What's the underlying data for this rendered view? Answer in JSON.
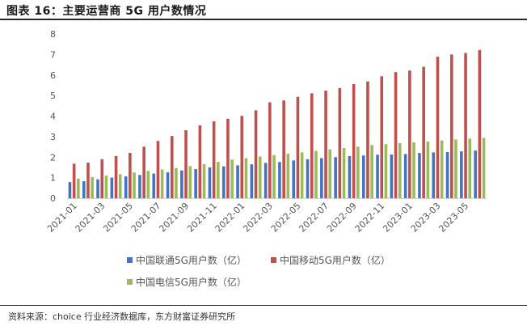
{
  "title": "图表 16：主要运营商 5G 用户数情况",
  "source": "资料来源：choice 行业经济数据库，东方财富证券研究所",
  "chart_data": {
    "type": "bar",
    "ylim": [
      0,
      8
    ],
    "yticks": [
      0,
      1,
      2,
      3,
      4,
      5,
      6,
      7,
      8
    ],
    "grid": false,
    "legend_position": "bottom",
    "categories": [
      "2021-01",
      "2021-02",
      "2021-03",
      "2021-04",
      "2021-05",
      "2021-06",
      "2021-07",
      "2021-08",
      "2021-09",
      "2021-10",
      "2021-11",
      "2021-12",
      "2022-01",
      "2022-02",
      "2022-03",
      "2022-04",
      "2022-05",
      "2022-06",
      "2022-07",
      "2022-08",
      "2022-09",
      "2022-10",
      "2022-11",
      "2022-12",
      "2023-01",
      "2023-02",
      "2023-03",
      "2023-04",
      "2023-05",
      "2023-06"
    ],
    "xtick_labels": [
      "2021-01",
      "2021-03",
      "2021-05",
      "2021-07",
      "2021-09",
      "2021-11",
      "2022-01",
      "2022-03",
      "2022-05",
      "2022-07",
      "2022-09",
      "2022-11",
      "2023-01",
      "2023-03",
      "2023-05"
    ],
    "series": [
      {
        "name": "中国联通5G用户数（亿）",
        "color": "#4472C4",
        "values": [
          0.78,
          0.83,
          0.92,
          1.0,
          1.06,
          1.13,
          1.2,
          1.26,
          1.35,
          1.42,
          1.5,
          1.55,
          1.6,
          1.65,
          1.72,
          1.76,
          1.84,
          1.9,
          1.95,
          2.0,
          2.05,
          2.08,
          2.12,
          2.13,
          2.15,
          2.2,
          2.23,
          2.25,
          2.28,
          2.32
        ]
      },
      {
        "name": "中国移动5G用户数（亿）",
        "color": "#C0504D",
        "values": [
          1.68,
          1.73,
          1.9,
          2.05,
          2.21,
          2.51,
          2.79,
          3.03,
          3.31,
          3.55,
          3.74,
          3.87,
          4.01,
          4.28,
          4.67,
          4.76,
          4.94,
          5.11,
          5.24,
          5.37,
          5.56,
          5.69,
          5.94,
          6.14,
          6.22,
          6.4,
          6.89,
          7.0,
          7.07,
          7.22
        ]
      },
      {
        "name": "中国电信5G用户数（亿）",
        "color": "#9BBB59",
        "values": [
          0.95,
          1.03,
          1.1,
          1.17,
          1.25,
          1.33,
          1.4,
          1.47,
          1.56,
          1.66,
          1.77,
          1.88,
          1.95,
          2.03,
          2.1,
          2.16,
          2.23,
          2.31,
          2.38,
          2.44,
          2.51,
          2.59,
          2.63,
          2.68,
          2.72,
          2.76,
          2.81,
          2.86,
          2.9,
          2.94
        ]
      }
    ]
  }
}
